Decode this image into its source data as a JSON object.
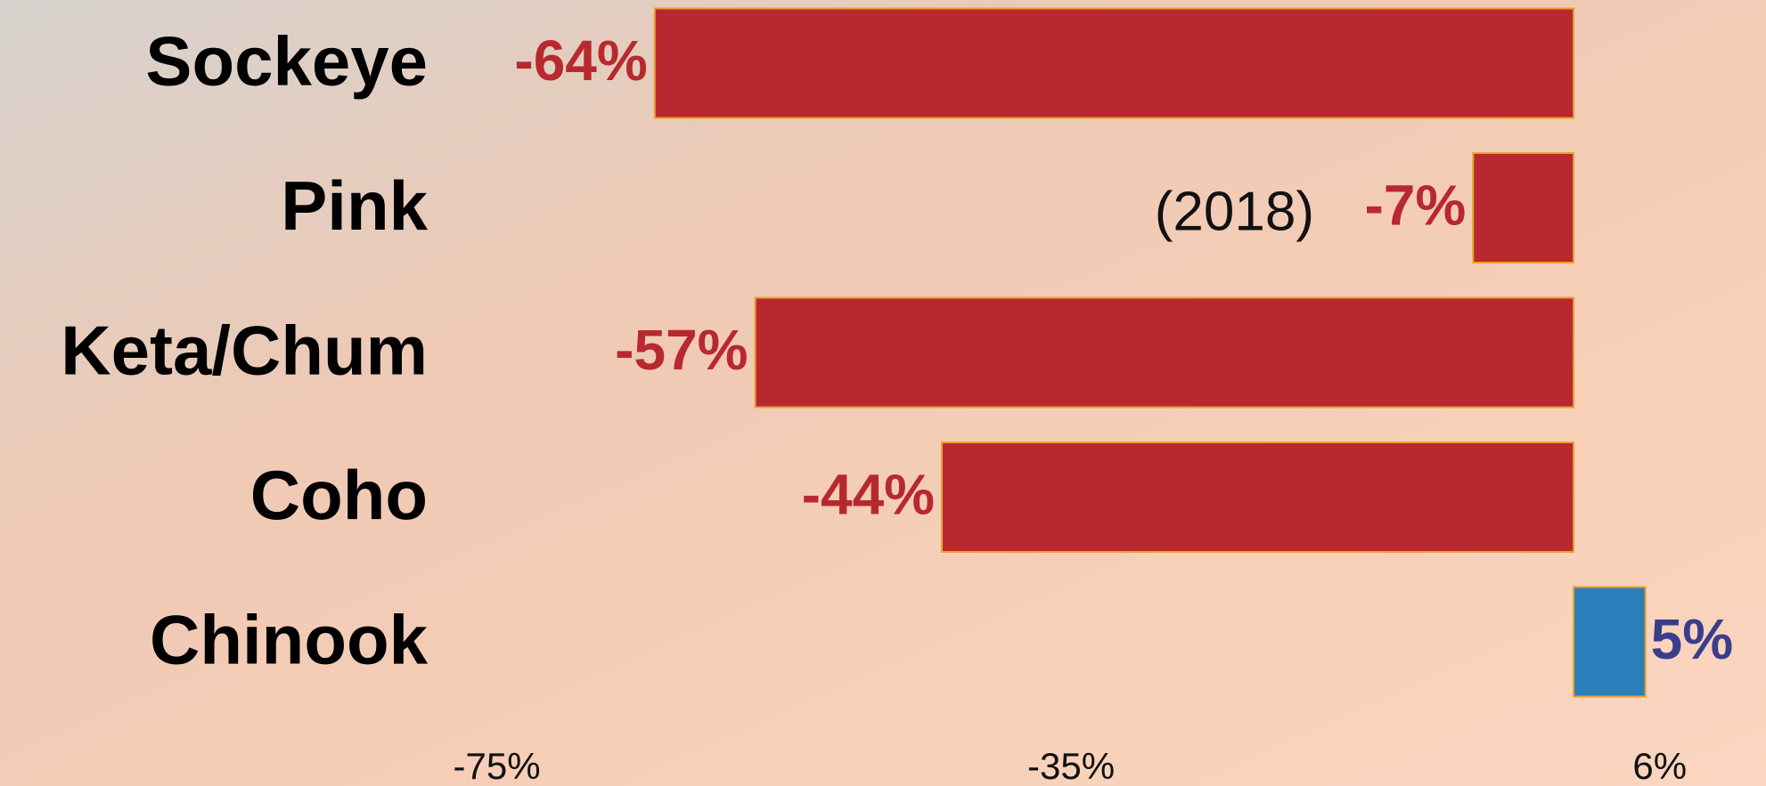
{
  "chart_data": {
    "type": "hbar",
    "categories": [
      "Sockeye",
      "Pink",
      "Keta/Chum",
      "Coho",
      "Chinook"
    ],
    "values": [
      -64,
      -7,
      -57,
      -44,
      5
    ],
    "value_labels": [
      "-64%",
      "-7%",
      "-57%",
      "-44%",
      "5%"
    ],
    "colors": [
      "#b8292f",
      "#b8292f",
      "#b8292f",
      "#b8292f",
      "#2a7fba"
    ],
    "label_colors": [
      "#b8292f",
      "#b8292f",
      "#b8292f",
      "#b8292f",
      "#3a3d8a"
    ],
    "annotation": "(2018)",
    "xlim": [
      -109.6,
      13.4
    ],
    "xticks": [
      {
        "value": -75,
        "label": "-75%"
      },
      {
        "value": -35,
        "label": "-35%"
      },
      {
        "value": 6,
        "label": "6%"
      }
    ],
    "grid": false
  }
}
